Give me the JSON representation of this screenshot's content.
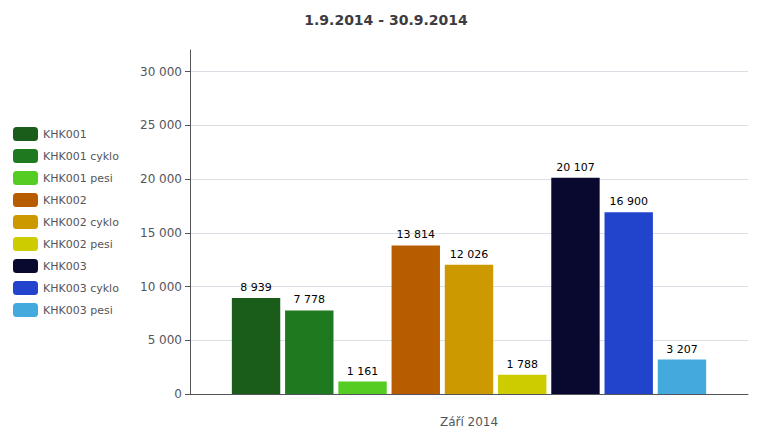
{
  "chart_data": {
    "type": "bar",
    "title": "1.9.2014 - 30.9.2014",
    "xlabel": "Září 2014",
    "categories": [
      null
    ],
    "series": [
      {
        "name": "KHK001",
        "color": "#1a5c1a",
        "values": [
          8939
        ],
        "value_labels": [
          "8 939"
        ]
      },
      {
        "name": "KHK001 cyklo",
        "color": "#1f7a1f",
        "values": [
          7778
        ],
        "value_labels": [
          "7 778"
        ]
      },
      {
        "name": "KHK001 pesi",
        "color": "#55cc22",
        "values": [
          1161
        ],
        "value_labels": [
          "1 161"
        ]
      },
      {
        "name": "KHK002",
        "color": "#b85c00",
        "values": [
          13814
        ],
        "value_labels": [
          "13 814"
        ]
      },
      {
        "name": "KHK002 cyklo",
        "color": "#cc9900",
        "values": [
          12026
        ],
        "value_labels": [
          "12 026"
        ]
      },
      {
        "name": "KHK002 pesi",
        "color": "#cccc00",
        "values": [
          1788
        ],
        "value_labels": [
          "1 788"
        ]
      },
      {
        "name": "KHK003",
        "color": "#090930",
        "values": [
          20107
        ],
        "value_labels": [
          "20 107"
        ]
      },
      {
        "name": "KHK003 cyklo",
        "color": "#2244cc",
        "values": [
          16900
        ],
        "value_labels": [
          "16 900"
        ]
      },
      {
        "name": "KHK003 pesi",
        "color": "#44aadd",
        "values": [
          3207
        ],
        "value_labels": [
          "3 207"
        ]
      }
    ],
    "ylim": [
      0,
      32000
    ],
    "yticks": [
      0,
      {
        "value": 5000,
        "label": "5 000"
      },
      {
        "value": 10000,
        "label": "10 000"
      },
      {
        "value": 15000,
        "label": "15 000"
      },
      {
        "value": 20000,
        "label": "20 000"
      },
      {
        "value": 25000,
        "label": "25 000"
      },
      {
        "value": 30000,
        "label": "30 000"
      }
    ],
    "grid": true,
    "legend": "left",
    "data_labels": true,
    "tick_labels": "y"
  }
}
